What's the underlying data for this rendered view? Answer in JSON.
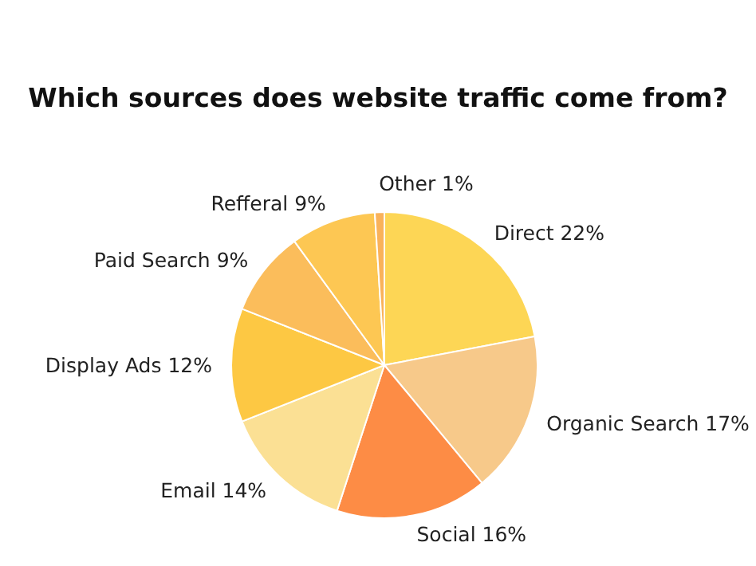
{
  "chart_data": {
    "type": "pie",
    "title": "Which sources does website traffic come from?",
    "categories": [
      "Direct",
      "Organic Search",
      "Social",
      "Email",
      "Display Ads",
      "Paid Search",
      "Refferal",
      "Other"
    ],
    "values": [
      22,
      17,
      16,
      14,
      12,
      9,
      9,
      1
    ],
    "value_labels": [
      "22%",
      "17%",
      "16%",
      "14%",
      "12%",
      "9%",
      "9%",
      "1%"
    ],
    "colors": [
      "#fdd655",
      "#f7c98a",
      "#fd8c45",
      "#fbe094",
      "#fdc843",
      "#fbbd5b",
      "#fdc753",
      "#f9b25a"
    ],
    "legend": false
  }
}
